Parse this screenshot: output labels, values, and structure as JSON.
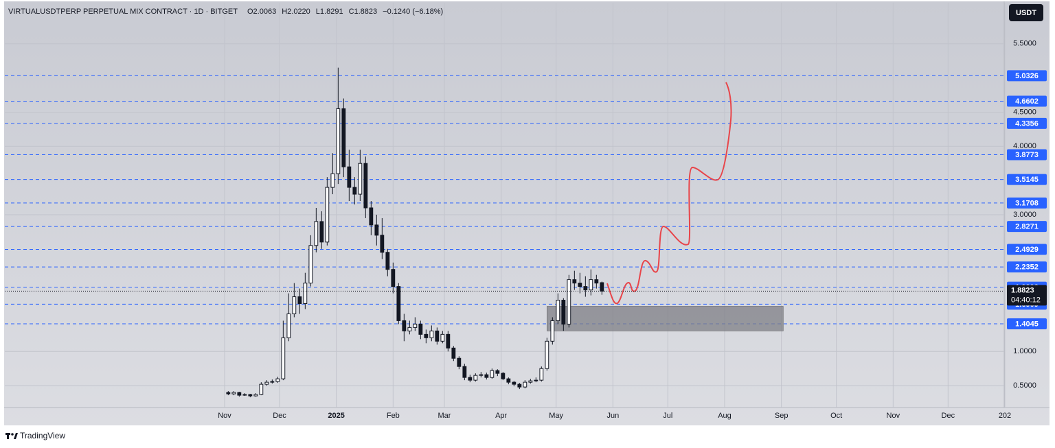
{
  "header": {
    "title": "VIRTUALUSDTPERP PERPETUAL MIX CONTRACT · 1D · BITGET",
    "ohlc": [
      "O2.0063",
      "H2.0220",
      "L1.8291",
      "C1.8823"
    ],
    "change": "−0.1240 (−6.18%)",
    "currency": "USDT"
  },
  "chart_data": {
    "type": "candlestick",
    "x": [
      2,
      5,
      8,
      11,
      14,
      17,
      20,
      23,
      26,
      29,
      32,
      35,
      38,
      41,
      44,
      47,
      50,
      53,
      56,
      59,
      62,
      65,
      68,
      71,
      74,
      77,
      80,
      83,
      86,
      89,
      92,
      95,
      98,
      101,
      104,
      107,
      110,
      113,
      116,
      119,
      122,
      125,
      128,
      131,
      134,
      137,
      140,
      143,
      146,
      149,
      152,
      155,
      158,
      161,
      164,
      167,
      170,
      173,
      176,
      179,
      182,
      185,
      188,
      191,
      194,
      197,
      200,
      203,
      206
    ],
    "open": [
      0.4,
      0.38,
      0.4,
      0.36,
      0.37,
      0.35,
      0.37,
      0.52,
      0.55,
      0.56,
      0.6,
      1.2,
      1.55,
      1.8,
      1.7,
      2.0,
      2.55,
      2.9,
      2.6,
      3.4,
      3.6,
      4.55,
      3.7,
      3.4,
      3.3,
      3.75,
      3.1,
      2.85,
      2.7,
      2.45,
      2.2,
      1.95,
      1.45,
      1.3,
      1.35,
      1.4,
      1.25,
      1.2,
      1.3,
      1.15,
      1.25,
      1.05,
      0.9,
      0.78,
      0.62,
      0.58,
      0.65,
      0.66,
      0.62,
      0.72,
      0.68,
      0.6,
      0.55,
      0.52,
      0.48,
      0.55,
      0.57,
      0.58,
      0.75,
      1.15,
      1.45,
      1.75,
      1.4,
      2.05,
      2.0,
      1.95,
      1.9,
      2.05,
      2.0063
    ],
    "high": [
      0.42,
      0.42,
      0.41,
      0.39,
      0.38,
      0.39,
      0.55,
      0.58,
      0.59,
      0.63,
      1.45,
      1.85,
      2.0,
      1.92,
      2.15,
      2.7,
      3.1,
      3.05,
      3.55,
      3.9,
      5.15,
      4.7,
      3.95,
      3.55,
      3.95,
      3.85,
      3.2,
      3.0,
      2.95,
      2.5,
      2.3,
      2.0,
      1.55,
      1.45,
      1.5,
      1.45,
      1.32,
      1.38,
      1.35,
      1.3,
      1.3,
      1.08,
      0.93,
      0.82,
      0.66,
      0.68,
      0.7,
      0.69,
      0.75,
      0.74,
      0.7,
      0.62,
      0.57,
      0.54,
      0.58,
      0.6,
      0.62,
      0.78,
      1.2,
      1.5,
      1.85,
      1.78,
      2.12,
      2.18,
      2.15,
      2.1,
      2.2,
      2.12,
      2.022
    ],
    "low": [
      0.36,
      0.36,
      0.34,
      0.35,
      0.33,
      0.34,
      0.36,
      0.5,
      0.53,
      0.54,
      0.58,
      1.15,
      1.5,
      1.55,
      1.62,
      1.95,
      2.45,
      2.5,
      2.55,
      3.3,
      3.45,
      3.55,
      3.2,
      3.15,
      3.2,
      2.95,
      2.7,
      2.55,
      2.35,
      2.1,
      1.85,
      1.4,
      1.15,
      1.25,
      1.3,
      1.18,
      1.12,
      1.15,
      1.1,
      1.12,
      1.0,
      0.86,
      0.74,
      0.58,
      0.55,
      0.56,
      0.62,
      0.59,
      0.6,
      0.64,
      0.58,
      0.52,
      0.49,
      0.45,
      0.46,
      0.53,
      0.55,
      0.56,
      0.72,
      1.1,
      1.4,
      1.3,
      1.35,
      1.9,
      1.85,
      1.8,
      1.82,
      1.92,
      1.8291
    ],
    "close": [
      0.38,
      0.4,
      0.36,
      0.37,
      0.35,
      0.37,
      0.52,
      0.55,
      0.56,
      0.6,
      1.2,
      1.55,
      1.8,
      1.7,
      2.0,
      2.55,
      2.9,
      2.6,
      3.4,
      3.6,
      4.55,
      3.7,
      3.4,
      3.3,
      3.75,
      3.1,
      2.85,
      2.7,
      2.45,
      2.2,
      1.95,
      1.45,
      1.3,
      1.35,
      1.4,
      1.25,
      1.2,
      1.3,
      1.15,
      1.25,
      1.05,
      0.9,
      0.78,
      0.62,
      0.58,
      0.65,
      0.66,
      0.62,
      0.72,
      0.68,
      0.6,
      0.55,
      0.52,
      0.48,
      0.55,
      0.57,
      0.58,
      0.75,
      1.15,
      1.45,
      1.75,
      1.4,
      2.05,
      2.0,
      1.95,
      1.9,
      2.05,
      2.0,
      1.8823
    ],
    "up_color": "#ffffff",
    "down_color": "#131722",
    "xlim": [
      -120,
      426
    ],
    "xticks": [
      {
        "value": 0,
        "label": "Nov"
      },
      {
        "value": 30,
        "label": "Dec"
      },
      {
        "value": 61,
        "label": "2025"
      },
      {
        "value": 92,
        "label": "Feb"
      },
      {
        "value": 120,
        "label": "Mar"
      },
      {
        "value": 151,
        "label": "Apr"
      },
      {
        "value": 181,
        "label": "May"
      },
      {
        "value": 212,
        "label": "Jun"
      },
      {
        "value": 242,
        "label": "Jul"
      },
      {
        "value": 273,
        "label": "Aug"
      },
      {
        "value": 304,
        "label": "Sep"
      },
      {
        "value": 334,
        "label": "Oct"
      },
      {
        "value": 365,
        "label": "Nov"
      },
      {
        "value": 395,
        "label": "Dec"
      },
      {
        "value": 426,
        "label": "202"
      }
    ],
    "ylim": [
      0.18,
      6.1
    ],
    "yticks": [
      {
        "value": 0.5,
        "label": "0.5000"
      },
      {
        "value": 1,
        "label": "1.0000"
      },
      {
        "value": 3,
        "label": "3.0000"
      },
      {
        "value": 4,
        "label": "4.0000"
      },
      {
        "value": 4.5,
        "label": "4.5000"
      },
      {
        "value": 5.5,
        "label": "5.5000"
      }
    ],
    "grid": true,
    "levels": [
      5.0326,
      4.6602,
      4.3356,
      3.8773,
      3.5145,
      3.1708,
      2.8271,
      2.4929,
      2.2352,
      1.9392,
      1.6909,
      1.4045
    ],
    "level_color": "#2962ff",
    "countdown": "04:40:12",
    "zone": {
      "x": [
        176,
        305
      ],
      "y": [
        1.3,
        1.66
      ],
      "color": "#7f7f85"
    }
  },
  "footer": "TradingView"
}
